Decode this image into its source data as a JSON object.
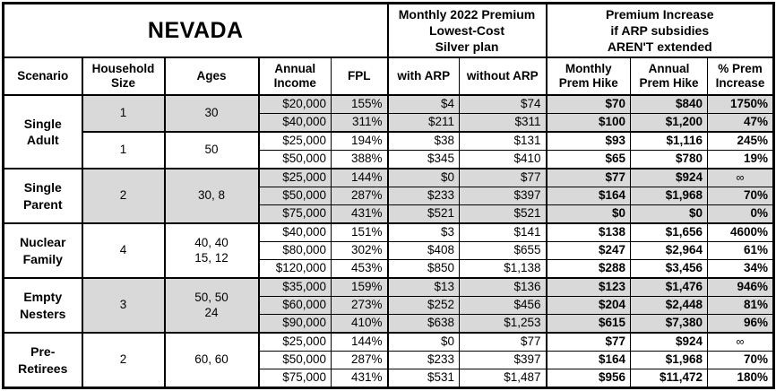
{
  "title": "NEVADA",
  "header": {
    "premium_group": "Monthly 2022 Premium\nLowest-Cost\nSilver plan",
    "increase_group": "Premium Increase\nif ARP subsidies\nAREN'T extended",
    "columns": {
      "scenario": "Scenario",
      "household": "Household\nSize",
      "ages": "Ages",
      "income": "Annual\nIncome",
      "fpl": "FPL",
      "with_arp": "with ARP",
      "without_arp": "without ARP",
      "monthly_hike": "Monthly\nPrem Hike",
      "annual_hike": "Annual\nPrem Hike",
      "pct_increase": "% Prem\nIncrease"
    }
  },
  "colors": {
    "shaded_row": "#d9d9d9",
    "border": "#000000",
    "background": "#ffffff",
    "text": "#000000"
  },
  "chart_data": {
    "type": "table",
    "title": "NEVADA",
    "row_columns": [
      "Annual Income",
      "FPL",
      "with ARP",
      "without ARP",
      "Monthly Prem Hike",
      "Annual Prem Hike",
      "% Prem Increase"
    ],
    "groups": [
      {
        "scenario": "Single\nAdult",
        "subgroups": [
          {
            "household": "1",
            "ages": "30",
            "shaded": true,
            "rows": [
              [
                "$20,000",
                "155%",
                "$4",
                "$74",
                "$70",
                "$840",
                "1750%"
              ],
              [
                "$40,000",
                "311%",
                "$211",
                "$311",
                "$100",
                "$1,200",
                "47%"
              ]
            ]
          },
          {
            "household": "1",
            "ages": "50",
            "shaded": false,
            "rows": [
              [
                "$25,000",
                "194%",
                "$38",
                "$131",
                "$93",
                "$1,116",
                "245%"
              ],
              [
                "$50,000",
                "388%",
                "$345",
                "$410",
                "$65",
                "$780",
                "19%"
              ]
            ]
          }
        ]
      },
      {
        "scenario": "Single\nParent",
        "subgroups": [
          {
            "household": "2",
            "ages": "30, 8",
            "shaded": true,
            "rows": [
              [
                "$25,000",
                "144%",
                "$0",
                "$77",
                "$77",
                "$924",
                "∞"
              ],
              [
                "$50,000",
                "287%",
                "$233",
                "$397",
                "$164",
                "$1,968",
                "70%"
              ],
              [
                "$75,000",
                "431%",
                "$521",
                "$521",
                "$0",
                "$0",
                "0%"
              ]
            ]
          }
        ]
      },
      {
        "scenario": "Nuclear\nFamily",
        "subgroups": [
          {
            "household": "4",
            "ages": "40, 40\n15, 12",
            "shaded": false,
            "rows": [
              [
                "$40,000",
                "151%",
                "$3",
                "$141",
                "$138",
                "$1,656",
                "4600%"
              ],
              [
                "$80,000",
                "302%",
                "$408",
                "$655",
                "$247",
                "$2,964",
                "61%"
              ],
              [
                "$120,000",
                "453%",
                "$850",
                "$1,138",
                "$288",
                "$3,456",
                "34%"
              ]
            ]
          }
        ]
      },
      {
        "scenario": "Empty\nNesters",
        "subgroups": [
          {
            "household": "3",
            "ages": "50, 50\n24",
            "shaded": true,
            "rows": [
              [
                "$35,000",
                "159%",
                "$13",
                "$136",
                "$123",
                "$1,476",
                "946%"
              ],
              [
                "$60,000",
                "273%",
                "$252",
                "$456",
                "$204",
                "$2,448",
                "81%"
              ],
              [
                "$90,000",
                "410%",
                "$638",
                "$1,253",
                "$615",
                "$7,380",
                "96%"
              ]
            ]
          }
        ]
      },
      {
        "scenario": "Pre-\nRetirees",
        "subgroups": [
          {
            "household": "2",
            "ages": "60, 60",
            "shaded": false,
            "rows": [
              [
                "$25,000",
                "144%",
                "$0",
                "$77",
                "$77",
                "$924",
                "∞"
              ],
              [
                "$50,000",
                "287%",
                "$233",
                "$397",
                "$164",
                "$1,968",
                "70%"
              ],
              [
                "$75,000",
                "431%",
                "$531",
                "$1,487",
                "$956",
                "$11,472",
                "180%"
              ]
            ]
          }
        ]
      }
    ]
  }
}
